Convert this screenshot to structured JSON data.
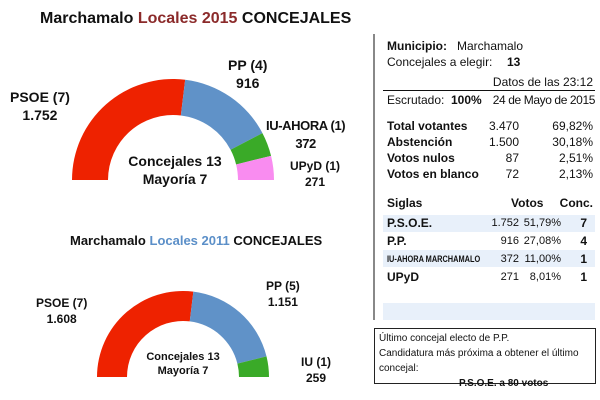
{
  "chart_data": [
    {
      "type": "pie",
      "subtype": "semi-donut",
      "title": {
        "prefix": "Marchamalo",
        "highlight": "Locales 2015",
        "suffix": "CONCEJALES",
        "highlight_color": "#8b2a2a"
      },
      "center_text": [
        "Concejales 13",
        "Mayoría 7"
      ],
      "slices": [
        {
          "label": "PSOE (7)",
          "seats": 7,
          "votes": "1.752",
          "color": "#ee2200"
        },
        {
          "label": "PP (4)",
          "seats": 4,
          "votes": "916",
          "color": "#6092c8"
        },
        {
          "label": "IU-AHORA (1)",
          "seats": 1,
          "votes": "372",
          "color": "#3aaa28"
        },
        {
          "label": "UPyD (1)",
          "seats": 1,
          "votes": "271",
          "color": "#f98cf0"
        }
      ]
    },
    {
      "type": "pie",
      "subtype": "semi-donut",
      "title": {
        "prefix": "Marchamalo",
        "highlight": "Locales 2011",
        "suffix": "CONCEJALES",
        "highlight_color": "#5b8fc8"
      },
      "center_text": [
        "Concejales 13",
        "Mayoría 7"
      ],
      "slices": [
        {
          "label": "PSOE (7)",
          "seats": 7,
          "votes": "1.608",
          "color": "#ee2200"
        },
        {
          "label": "PP (5)",
          "seats": 5,
          "votes": "1.151",
          "color": "#6092c8"
        },
        {
          "label": "IU (1)",
          "seats": 1,
          "votes": "259",
          "color": "#3aaa28"
        }
      ]
    }
  ],
  "panel": {
    "municipio_label": "Municipio:",
    "municipio": "Marchamalo",
    "concejales_label": "Concejales a elegir:",
    "concejales": "13",
    "datos": "Datos de las 23:12",
    "escrutado_label": "Escrutado:",
    "escrutado": "100%",
    "fecha": "24 de Mayo de 2015",
    "stats": [
      {
        "label": "Total votantes",
        "value": "3.470",
        "pct": "69,82%"
      },
      {
        "label": "Abstención",
        "value": "1.500",
        "pct": "30,18%"
      },
      {
        "label": "Votos nulos",
        "value": "87",
        "pct": "2,51%"
      },
      {
        "label": "Votos en blanco",
        "value": "72",
        "pct": "2,13%"
      }
    ],
    "headers": {
      "siglas": "Siglas",
      "votos": "Votos",
      "conc": "Conc."
    },
    "rows": [
      {
        "sigla": "P.S.O.E.",
        "votos": "1.752",
        "pct": "51,79%",
        "conc": "7"
      },
      {
        "sigla": "P.P.",
        "votos": "916",
        "pct": "27,08%",
        "conc": "4"
      },
      {
        "sigla": "IU-AHORA MARCHAMALO",
        "votos": "372",
        "pct": "11,00%",
        "conc": "1"
      },
      {
        "sigla": "UPyD",
        "votos": "271",
        "pct": "8,01%",
        "conc": "1"
      }
    ]
  },
  "note": {
    "line1": "Último concejal electo de P.P.",
    "line2": "Candidatura más próxima a obtener el último concejal:",
    "line3": "P.S.O.E. a 80 votos"
  }
}
